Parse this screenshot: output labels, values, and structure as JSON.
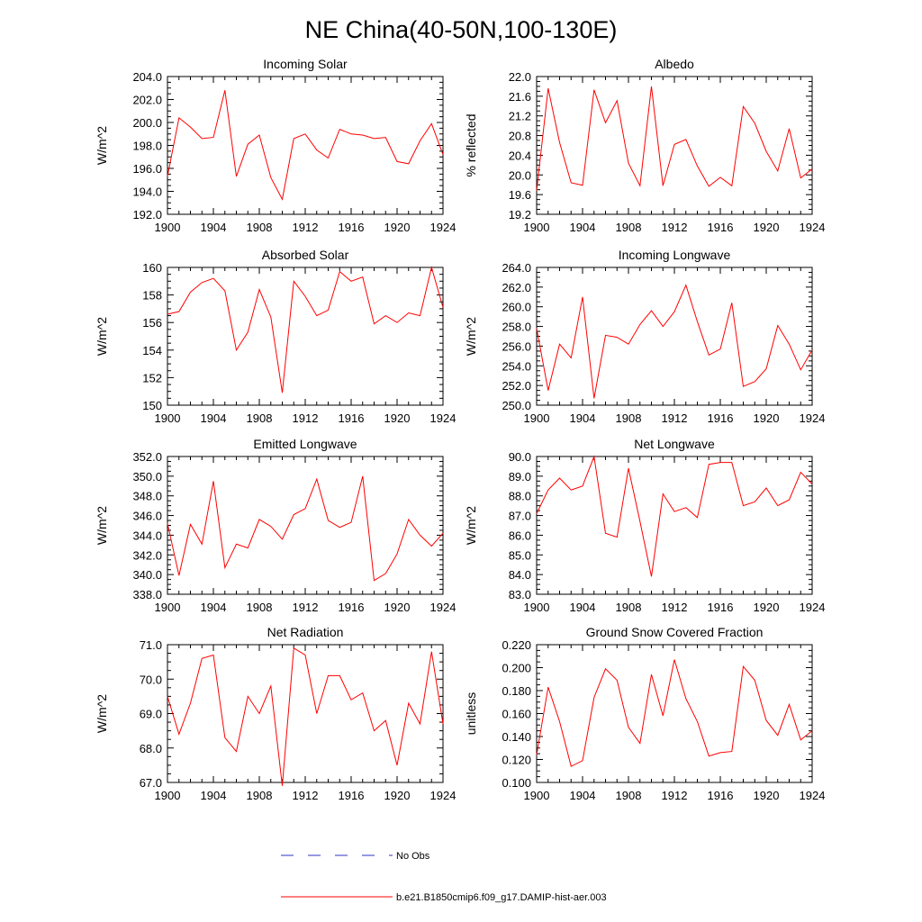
{
  "figure": {
    "title": "NE China(40-50N,100-130E)",
    "series_color": "#ff0000",
    "obs_color": "#3030c0",
    "legend": {
      "obs_label": "No Obs",
      "model_label": "b.e21.B1850cmip6.f09_g17.DAMIP-hist-aer.003"
    }
  },
  "chart_data": [
    {
      "type": "line",
      "title": "Incoming Solar",
      "ylabel": "W/m^2",
      "xlim": [
        1900,
        1924
      ],
      "ylim": [
        192.0,
        204.0
      ],
      "x_ticks": [
        "1900",
        "1904",
        "1908",
        "1912",
        "1916",
        "1920",
        "1924"
      ],
      "y_ticks": [
        "192.0",
        "194.0",
        "196.0",
        "198.0",
        "200.0",
        "202.0",
        "204.0"
      ],
      "series": [
        {
          "name": "b.e21.B1850cmip6.f09_g17.DAMIP-hist-aer.003",
          "x": [
            1900,
            1901,
            1902,
            1903,
            1904,
            1905,
            1906,
            1907,
            1908,
            1909,
            1910,
            1911,
            1912,
            1913,
            1914,
            1915,
            1916,
            1917,
            1918,
            1919,
            1920,
            1921,
            1922,
            1923,
            1924
          ],
          "values": [
            195.3,
            200.4,
            199.6,
            198.6,
            198.7,
            202.8,
            195.3,
            198.1,
            198.9,
            195.2,
            193.3,
            198.6,
            199.0,
            197.6,
            196.9,
            199.4,
            199.0,
            198.9,
            198.6,
            198.7,
            196.6,
            196.4,
            198.4,
            199.9,
            197.2
          ]
        }
      ]
    },
    {
      "type": "line",
      "title": "Albedo",
      "ylabel": "% reflected",
      "xlim": [
        1900,
        1924
      ],
      "ylim": [
        19.2,
        22.0
      ],
      "x_ticks": [
        "1900",
        "1904",
        "1908",
        "1912",
        "1916",
        "1920",
        "1924"
      ],
      "y_ticks": [
        "19.2",
        "19.6",
        "20.0",
        "20.4",
        "20.8",
        "21.2",
        "21.6",
        "22.0"
      ],
      "series": [
        {
          "name": "b.e21.B1850cmip6.f09_g17.DAMIP-hist-aer.003",
          "x": [
            1900,
            1901,
            1902,
            1903,
            1904,
            1905,
            1906,
            1907,
            1908,
            1909,
            1910,
            1911,
            1912,
            1913,
            1914,
            1915,
            1916,
            1917,
            1918,
            1919,
            1920,
            1921,
            1922,
            1923,
            1924
          ],
          "values": [
            19.68,
            21.76,
            20.66,
            19.84,
            19.79,
            21.73,
            21.06,
            21.51,
            20.24,
            19.78,
            21.8,
            19.78,
            20.62,
            20.72,
            20.18,
            19.77,
            19.95,
            19.78,
            21.39,
            21.05,
            20.48,
            20.08,
            20.94,
            19.94,
            20.12
          ]
        }
      ]
    },
    {
      "type": "line",
      "title": "Absorbed Solar",
      "ylabel": "W/m^2",
      "xlim": [
        1900,
        1924
      ],
      "ylim": [
        150,
        160
      ],
      "x_ticks": [
        "1900",
        "1904",
        "1908",
        "1912",
        "1916",
        "1920",
        "1924"
      ],
      "y_ticks": [
        "150",
        "152",
        "154",
        "156",
        "158",
        "160"
      ],
      "series": [
        {
          "name": "b.e21.B1850cmip6.f09_g17.DAMIP-hist-aer.003",
          "x": [
            1900,
            1901,
            1902,
            1903,
            1904,
            1905,
            1906,
            1907,
            1908,
            1909,
            1910,
            1911,
            1912,
            1913,
            1914,
            1915,
            1916,
            1917,
            1918,
            1919,
            1920,
            1921,
            1922,
            1923,
            1924
          ],
          "values": [
            156.6,
            156.8,
            158.2,
            158.9,
            159.2,
            158.3,
            154.0,
            155.3,
            158.4,
            156.4,
            150.9,
            159.0,
            157.9,
            156.5,
            156.9,
            159.7,
            159.0,
            159.3,
            155.9,
            156.5,
            156.0,
            156.7,
            156.5,
            160.0,
            157.1
          ]
        }
      ]
    },
    {
      "type": "line",
      "title": "Incoming Longwave",
      "ylabel": "W/m^2",
      "xlim": [
        1900,
        1924
      ],
      "ylim": [
        250.0,
        264.0
      ],
      "x_ticks": [
        "1900",
        "1904",
        "1908",
        "1912",
        "1916",
        "1920",
        "1924"
      ],
      "y_ticks": [
        "250.0",
        "252.0",
        "254.0",
        "256.0",
        "258.0",
        "260.0",
        "262.0",
        "264.0"
      ],
      "series": [
        {
          "name": "b.e21.B1850cmip6.f09_g17.DAMIP-hist-aer.003",
          "x": [
            1900,
            1901,
            1902,
            1903,
            1904,
            1905,
            1906,
            1907,
            1908,
            1909,
            1910,
            1911,
            1912,
            1913,
            1914,
            1915,
            1916,
            1917,
            1918,
            1919,
            1920,
            1921,
            1922,
            1923,
            1924
          ],
          "values": [
            257.8,
            251.5,
            256.2,
            254.8,
            261.0,
            250.7,
            257.1,
            256.9,
            256.2,
            258.2,
            259.6,
            258.0,
            259.5,
            262.2,
            258.5,
            255.1,
            255.7,
            260.4,
            251.9,
            252.4,
            253.7,
            258.1,
            256.2,
            253.6,
            255.6
          ]
        }
      ]
    },
    {
      "type": "line",
      "title": "Emitted Longwave",
      "ylabel": "W/m^2",
      "xlim": [
        1900,
        1924
      ],
      "ylim": [
        338.0,
        352.0
      ],
      "x_ticks": [
        "1900",
        "1904",
        "1908",
        "1912",
        "1916",
        "1920",
        "1924"
      ],
      "y_ticks": [
        "338.0",
        "340.0",
        "342.0",
        "344.0",
        "346.0",
        "348.0",
        "350.0",
        "352.0"
      ],
      "series": [
        {
          "name": "b.e21.B1850cmip6.f09_g17.DAMIP-hist-aer.003",
          "x": [
            1900,
            1901,
            1902,
            1903,
            1904,
            1905,
            1906,
            1907,
            1908,
            1909,
            1910,
            1911,
            1912,
            1913,
            1914,
            1915,
            1916,
            1917,
            1918,
            1919,
            1920,
            1921,
            1922,
            1923,
            1924
          ],
          "values": [
            345.2,
            339.9,
            345.1,
            343.1,
            349.5,
            340.7,
            343.1,
            342.7,
            345.6,
            344.9,
            343.6,
            346.1,
            346.7,
            349.7,
            345.5,
            344.8,
            345.3,
            350.0,
            339.4,
            340.1,
            342.1,
            345.6,
            344.0,
            342.9,
            344.2
          ]
        }
      ]
    },
    {
      "type": "line",
      "title": "Net Longwave",
      "ylabel": "W/m^2",
      "xlim": [
        1900,
        1924
      ],
      "ylim": [
        83.0,
        90.0
      ],
      "x_ticks": [
        "1900",
        "1904",
        "1908",
        "1912",
        "1916",
        "1920",
        "1924"
      ],
      "y_ticks": [
        "83.0",
        "84.0",
        "85.0",
        "86.0",
        "87.0",
        "88.0",
        "89.0",
        "90.0"
      ],
      "series": [
        {
          "name": "b.e21.B1850cmip6.f09_g17.DAMIP-hist-aer.003",
          "x": [
            1900,
            1901,
            1902,
            1903,
            1904,
            1905,
            1906,
            1907,
            1908,
            1909,
            1910,
            1911,
            1912,
            1913,
            1914,
            1915,
            1916,
            1917,
            1918,
            1919,
            1920,
            1921,
            1922,
            1923,
            1924
          ],
          "values": [
            87.1,
            88.3,
            88.9,
            88.3,
            88.5,
            90.0,
            86.1,
            85.9,
            89.4,
            86.7,
            83.9,
            88.1,
            87.2,
            87.4,
            86.9,
            89.6,
            89.7,
            89.7,
            87.5,
            87.7,
            88.4,
            87.5,
            87.8,
            89.2,
            88.6
          ]
        }
      ]
    },
    {
      "type": "line",
      "title": "Net Radiation",
      "ylabel": "W/m^2",
      "xlim": [
        1900,
        1924
      ],
      "ylim": [
        67.0,
        71.0
      ],
      "x_ticks": [
        "1900",
        "1904",
        "1908",
        "1912",
        "1916",
        "1920",
        "1924"
      ],
      "y_ticks": [
        "67.0",
        "68.0",
        "69.0",
        "70.0",
        "71.0"
      ],
      "series": [
        {
          "name": "b.e21.B1850cmip6.f09_g17.DAMIP-hist-aer.003",
          "x": [
            1900,
            1901,
            1902,
            1903,
            1904,
            1905,
            1906,
            1907,
            1908,
            1909,
            1910,
            1911,
            1912,
            1913,
            1914,
            1915,
            1916,
            1917,
            1918,
            1919,
            1920,
            1921,
            1922,
            1923,
            1924
          ],
          "values": [
            69.5,
            68.4,
            69.3,
            70.6,
            70.7,
            68.3,
            67.9,
            69.5,
            69.0,
            69.8,
            66.9,
            70.9,
            70.7,
            69.0,
            70.1,
            70.1,
            69.4,
            69.6,
            68.5,
            68.8,
            67.5,
            69.3,
            68.7,
            70.8,
            68.7
          ]
        }
      ]
    },
    {
      "type": "line",
      "title": "Ground Snow Covered Fraction",
      "ylabel": "unitless",
      "xlim": [
        1900,
        1924
      ],
      "ylim": [
        0.1,
        0.22
      ],
      "x_ticks": [
        "1900",
        "1904",
        "1908",
        "1912",
        "1916",
        "1920",
        "1924"
      ],
      "y_ticks": [
        "0.100",
        "0.120",
        "0.140",
        "0.160",
        "0.180",
        "0.200",
        "0.220"
      ],
      "series": [
        {
          "name": "b.e21.B1850cmip6.f09_g17.DAMIP-hist-aer.003",
          "x": [
            1900,
            1901,
            1902,
            1903,
            1904,
            1905,
            1906,
            1907,
            1908,
            1909,
            1910,
            1911,
            1912,
            1913,
            1914,
            1915,
            1916,
            1917,
            1918,
            1919,
            1920,
            1921,
            1922,
            1923,
            1924
          ],
          "values": [
            0.124,
            0.183,
            0.153,
            0.114,
            0.119,
            0.174,
            0.199,
            0.189,
            0.148,
            0.134,
            0.194,
            0.158,
            0.207,
            0.173,
            0.153,
            0.123,
            0.126,
            0.127,
            0.201,
            0.189,
            0.154,
            0.141,
            0.168,
            0.137,
            0.145
          ]
        }
      ]
    }
  ]
}
